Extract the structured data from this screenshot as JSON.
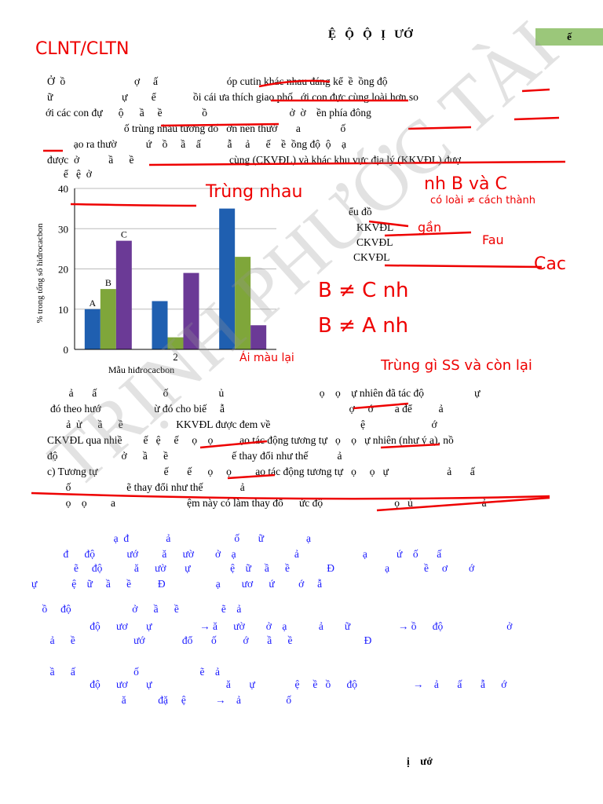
{
  "header": {
    "title": "Ệ   Ộ   Ộ   Ị   ƯỚ",
    "badge": "ế"
  },
  "paragraphs": [
    "Ở  ồ                          ợ     ấ                          óp cutin khác nhau đáng kể  ề  ồng độ",
    "ữ                          ự         ể              ồi cái ưa thích giao phố   ới con đực cùng loài hơn so",
    "ới các con đự      ộ      ầ     ề               ồ                               ở  ờ    ền phía đông",
    "                             ố trùng nhau tương đố   ớn nên thườ       a               ố",
    "          ạo ra thườ           ứ    ồ     ầ    ấ          ẫ     ả      ế    ề  ồng độ  ộ    ạ",
    "được  ở           ầ      ề                                    cùng (CKVĐL) và khác khu vực địa lý (KKVĐL) đượ",
    "     ể   ệ  ở",
    "       ả       ấ                         ố                   ủ                                    ọ    ọ    ự nhiên đã tác độ                   ự",
    "đó theo hướ                    ừ đó cho biế     ẫ                                               ợ     ớ        a để          ả",
    "      ả  ử      ầ      ề                    KKVĐL được đem về                                  ệ                         ớ",
    "CKVĐL qua nhiề        ế   ệ     ế     ọ    ọ          ạo tác động tương tự   ọ    ọ   ự nhiên (như ý a), nồ",
    "độ                        ở      ầ      ề                        ế thay đổi như thế           ả",
    "c) Tương tự                         ế       ế      ọ     ọ         ạo tác động tương tự   ọ     ọ   ự                      ả       ấ",
    "       ố                     ẽ thay đổi như thế              ả",
    "       ọ    ọ         a                           ệm này có làm thay đổ      ức độ                           ọ   ủ                          ả"
  ],
  "answers": [
    "                               ạ  đ              ả                        ố       ữ                ạ",
    "            đ      độ            ướ         ă      ườ        ở    ạ                      ả                        ạ           ứ    ố       ấ",
    "                ẽ     độ            ă      ườ       ự               ệ    ữ     ầ      ề              Đ                   ạ             ề     ơ        ớ",
    "ự             ệ    ữ     ầ      ề          Đ                   ạ        ươ      ứ         ớ     ẫ",
    "    ồ     độ                       ở      ầ      ề                ẽ    ả",
    "                      độ      ươ       ự                  → ă      ườ        ở    ạ            ả        ữ                  → ồ      độ                        ở",
    "       ả      ề                      ướ              đổ       ố          ớ       ầ      ề                           Đ",
    "       ầ      ấ                      ố                       ẽ    ả",
    "                      độ      ươ       ự                            ă       ự               ệ     ề   ồ      độ                     →    ả       ấ       ẫ      ớ",
    "                                  ă            đặ     ệ           →    ả                 ố"
  ],
  "chart": {
    "ylabel": "% trong tổng số hiđrocacbon",
    "xlabel": "Mẫu hiđrocacbon",
    "categories": [
      null,
      "2",
      null
    ],
    "ylim": [
      0,
      40
    ],
    "yticks": [
      0,
      10,
      20,
      30,
      40
    ],
    "series": [
      {
        "color": "#1f5fb0",
        "values": [
          10,
          12,
          35
        ]
      },
      {
        "color": "#7fa63a",
        "values": [
          15,
          3,
          23
        ]
      },
      {
        "color": "#6b3a96",
        "values": [
          27,
          19,
          6
        ]
      }
    ],
    "bar_labels": [
      "A",
      "B",
      "C"
    ],
    "legend_title": "ểu đồ",
    "legend": [
      "KKVĐL",
      "CKVĐL",
      "CKVĐL"
    ]
  },
  "handwriting": [
    "CLNT/CLTN",
    "Trùng nhau",
    "nh B và C",
    "có loài ≠ cách thành",
    "gần",
    "Fau",
    "Cac",
    "B ≠ C nh",
    "B ≠ A nh",
    "Trùng gì SS và còn lại",
    "Ái màu lại"
  ],
  "watermark": "TRỊNH PHƯỚC TÀI",
  "footer": "ị    ướ"
}
